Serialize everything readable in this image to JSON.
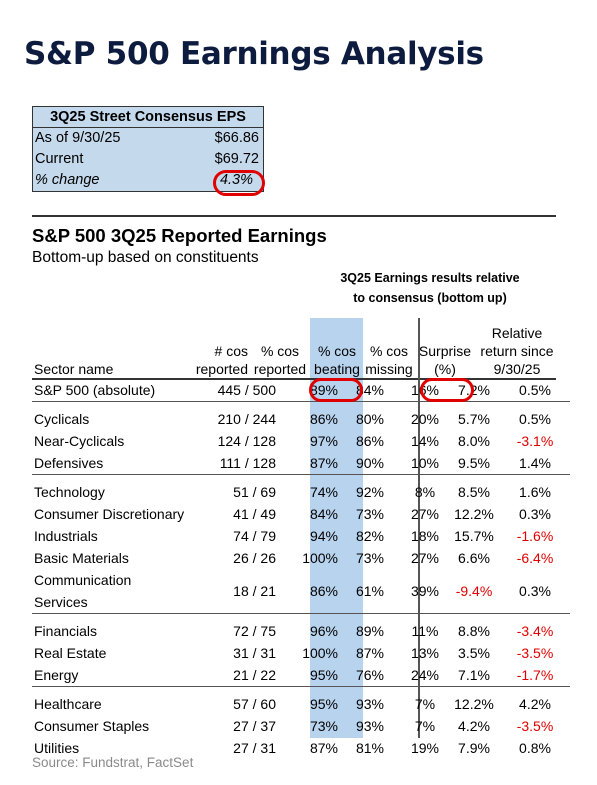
{
  "page_title": "S&P 500 Earnings Analysis",
  "eps_box": {
    "header": "3Q25 Street Consensus EPS",
    "rows": [
      {
        "label": "As of 9/30/25",
        "value": "$66.86"
      },
      {
        "label": "Current",
        "value": "$69.72"
      },
      {
        "label": "% change",
        "value": "4.3%"
      }
    ]
  },
  "section": {
    "title": "S&P 500 3Q25 Reported Earnings",
    "subtitle": "Bottom-up based on constituents",
    "group_header_line1": "3Q25 Earnings results relative",
    "group_header_line2": "to consensus (bottom up)"
  },
  "columns": {
    "sector": "Sector name",
    "reported_l1": "# cos",
    "reported_l2": "reported",
    "pct_reported_l1": "% cos",
    "pct_reported_l2": "reported",
    "beating_l1": "% cos",
    "beating_l2": "beating",
    "missing_l1": "% cos",
    "missing_l2": "missing",
    "surprise_l1": "Surprise",
    "surprise_l2": "(%)",
    "relative_l1": "Relative",
    "relative_l2": "return since",
    "relative_l3": "9/30/25"
  },
  "rows": [
    {
      "sector": "S&P 500 (absolute)",
      "reported": "445 / 500",
      "pct_reported": "89%",
      "beating": "84%",
      "missing": "16%",
      "surprise": "7.2%",
      "relative": "0.5%"
    },
    {
      "sector": "Cyclicals",
      "reported": "210 / 244",
      "pct_reported": "86%",
      "beating": "80%",
      "missing": "20%",
      "surprise": "5.7%",
      "relative": "0.5%"
    },
    {
      "sector": "Near-Cyclicals",
      "reported": "124 / 128",
      "pct_reported": "97%",
      "beating": "86%",
      "missing": "14%",
      "surprise": "8.0%",
      "relative": "-3.1%"
    },
    {
      "sector": "Defensives",
      "reported": "111 / 128",
      "pct_reported": "87%",
      "beating": "90%",
      "missing": "10%",
      "surprise": "9.5%",
      "relative": "1.4%"
    },
    {
      "sector": "Technology",
      "reported": "51 / 69",
      "pct_reported": "74%",
      "beating": "92%",
      "missing": "8%",
      "surprise": "8.5%",
      "relative": "1.6%"
    },
    {
      "sector": "Consumer Discretionary",
      "reported": "41 / 49",
      "pct_reported": "84%",
      "beating": "73%",
      "missing": "27%",
      "surprise": "12.2%",
      "relative": "0.3%"
    },
    {
      "sector": "Industrials",
      "reported": "74 / 79",
      "pct_reported": "94%",
      "beating": "82%",
      "missing": "18%",
      "surprise": "15.7%",
      "relative": "-1.6%"
    },
    {
      "sector": "Basic Materials",
      "reported": "26 / 26",
      "pct_reported": "100%",
      "beating": "73%",
      "missing": "27%",
      "surprise": "6.6%",
      "relative": "-6.4%"
    },
    {
      "sector": "Communication Services",
      "reported": "18 / 21",
      "pct_reported": "86%",
      "beating": "61%",
      "missing": "39%",
      "surprise": "-9.4%",
      "relative": "0.3%"
    },
    {
      "sector": "Financials",
      "reported": "72 / 75",
      "pct_reported": "96%",
      "beating": "89%",
      "missing": "11%",
      "surprise": "8.8%",
      "relative": "-3.4%"
    },
    {
      "sector": "Real Estate",
      "reported": "31 / 31",
      "pct_reported": "100%",
      "beating": "87%",
      "missing": "13%",
      "surprise": "3.5%",
      "relative": "-3.5%"
    },
    {
      "sector": "Energy",
      "reported": "21 / 22",
      "pct_reported": "95%",
      "beating": "76%",
      "missing": "24%",
      "surprise": "7.1%",
      "relative": "-1.7%"
    },
    {
      "sector": "Healthcare",
      "reported": "57 / 60",
      "pct_reported": "95%",
      "beating": "93%",
      "missing": "7%",
      "surprise": "12.2%",
      "relative": "4.2%"
    },
    {
      "sector": "Consumer Staples",
      "reported": "27 / 37",
      "pct_reported": "73%",
      "beating": "93%",
      "missing": "7%",
      "surprise": "4.2%",
      "relative": "-3.5%"
    },
    {
      "sector": "Utilities",
      "reported": "27 / 31",
      "pct_reported": "87%",
      "beating": "81%",
      "missing": "19%",
      "surprise": "7.9%",
      "relative": "0.8%"
    }
  ],
  "source": "Source: Fundstrat, FactSet",
  "colors": {
    "highlight_blue": "#b8d3ee",
    "box_blue": "#c5d9ed",
    "negative": "#e00000",
    "title_navy": "#0d1b3e"
  }
}
